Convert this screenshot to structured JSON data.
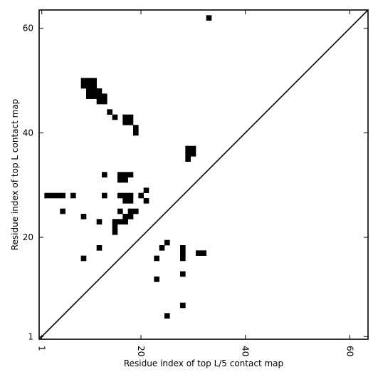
{
  "chart_data": {
    "type": "heatmap",
    "title": "",
    "xlabel": "Residue index of top L/5 contact map",
    "ylabel": "Residue index of top L contact map",
    "xlim": [
      0.5,
      63.5
    ],
    "ylim": [
      0.5,
      63.5
    ],
    "x_ticks": [
      1,
      20,
      40,
      60
    ],
    "x_tick_labels": [
      "1",
      "20",
      "40",
      "60"
    ],
    "y_ticks": [
      1,
      20,
      40,
      60
    ],
    "y_tick_labels": [
      "1",
      "20",
      "40",
      "60"
    ],
    "x_tick_rotation": -90,
    "grid": false,
    "cell_color": "#000000",
    "background": "#ffffff",
    "diagonal": [
      [
        0.5,
        0.5
      ],
      [
        63.5,
        63.5
      ]
    ],
    "cells": [
      [
        9,
        50
      ],
      [
        10,
        50
      ],
      [
        11,
        50
      ],
      [
        9,
        49
      ],
      [
        10,
        49
      ],
      [
        11,
        49
      ],
      [
        10,
        48
      ],
      [
        11,
        48
      ],
      [
        12,
        48
      ],
      [
        10,
        47
      ],
      [
        11,
        47
      ],
      [
        12,
        47
      ],
      [
        13,
        47
      ],
      [
        12,
        46
      ],
      [
        13,
        46
      ],
      [
        14,
        44
      ],
      [
        15,
        43
      ],
      [
        17,
        43
      ],
      [
        18,
        43
      ],
      [
        17,
        42
      ],
      [
        18,
        42
      ],
      [
        19,
        41
      ],
      [
        19,
        40
      ],
      [
        29,
        37
      ],
      [
        30,
        37
      ],
      [
        29,
        36
      ],
      [
        30,
        36
      ],
      [
        29,
        35
      ],
      [
        33,
        62
      ],
      [
        13,
        32
      ],
      [
        16,
        32
      ],
      [
        17,
        32
      ],
      [
        18,
        32
      ],
      [
        16,
        31
      ],
      [
        17,
        31
      ],
      [
        21,
        29
      ],
      [
        2,
        28
      ],
      [
        3,
        28
      ],
      [
        4,
        28
      ],
      [
        5,
        28
      ],
      [
        7,
        28
      ],
      [
        13,
        28
      ],
      [
        16,
        28
      ],
      [
        17,
        28
      ],
      [
        18,
        28
      ],
      [
        20,
        28
      ],
      [
        17,
        27
      ],
      [
        18,
        27
      ],
      [
        21,
        27
      ],
      [
        5,
        25
      ],
      [
        16,
        25
      ],
      [
        18,
        25
      ],
      [
        19,
        25
      ],
      [
        9,
        24
      ],
      [
        17,
        24
      ],
      [
        18,
        24
      ],
      [
        12,
        23
      ],
      [
        15,
        23
      ],
      [
        16,
        23
      ],
      [
        17,
        23
      ],
      [
        15,
        22
      ],
      [
        15,
        21
      ],
      [
        25,
        19
      ],
      [
        24,
        18
      ],
      [
        28,
        18
      ],
      [
        12,
        18
      ],
      [
        28,
        17
      ],
      [
        31,
        17
      ],
      [
        32,
        17
      ],
      [
        28,
        16
      ],
      [
        9,
        16
      ],
      [
        23,
        16
      ],
      [
        28,
        13
      ],
      [
        23,
        12
      ],
      [
        28,
        7
      ],
      [
        25,
        5
      ]
    ]
  }
}
